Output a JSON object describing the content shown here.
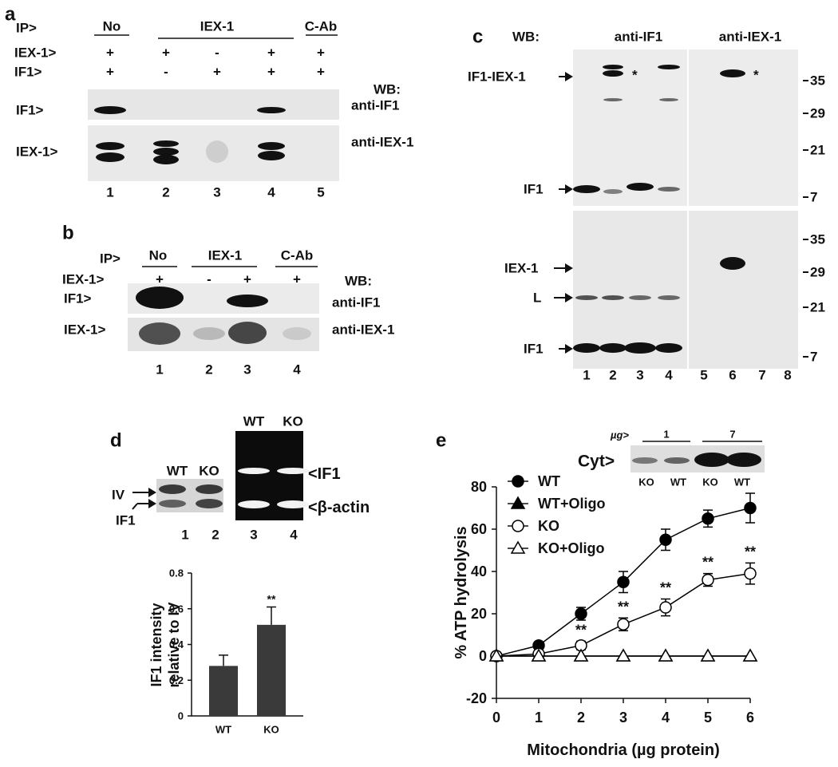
{
  "panels": {
    "a": {
      "letter": "a",
      "ip_label": "IP>",
      "groups": [
        "No",
        "IEX-1",
        "C-Ab"
      ],
      "rows": [
        {
          "label": "IEX-1>",
          "signs": [
            "+",
            "+",
            "-",
            "+",
            "+"
          ]
        },
        {
          "label": "IF1>",
          "signs": [
            "+",
            "-",
            "+",
            "+",
            "+"
          ]
        }
      ],
      "wb": "WB:",
      "blots": [
        {
          "label": "IF1>",
          "antibody": "anti-IF1"
        },
        {
          "label": "IEX-1>",
          "antibody": "anti-IEX-1"
        }
      ],
      "lanes": [
        1,
        2,
        3,
        4,
        5
      ]
    },
    "b": {
      "letter": "b",
      "ip_label": "IP>",
      "groups": [
        "No",
        "IEX-1",
        "C-Ab"
      ],
      "rows": [
        {
          "label": "IEX-1>",
          "signs": [
            "+",
            "-",
            "+",
            "+"
          ]
        }
      ],
      "wb": "WB:",
      "blots": [
        {
          "label": "IF1>",
          "antibody": "anti-IF1"
        },
        {
          "label": "IEX-1>",
          "antibody": "anti-IEX-1"
        }
      ],
      "lanes": [
        1,
        2,
        3,
        4
      ]
    },
    "c": {
      "letter": "c",
      "wb": "WB:",
      "antibodies": [
        "anti-IF1",
        "anti-IEX-1"
      ],
      "top_labels": [
        "IF1-IEX-1",
        "IF1"
      ],
      "bottom_labels": [
        "IEX-1",
        "L",
        "IF1"
      ],
      "asterisks": [
        "*",
        "*"
      ],
      "markers_top": [
        35,
        29,
        21,
        7
      ],
      "markers_bottom": [
        35,
        29,
        21,
        7
      ],
      "lanes": [
        1,
        2,
        3,
        4,
        5,
        6,
        7,
        8
      ]
    },
    "d": {
      "letter": "d",
      "blot_lanes": [
        "WT",
        "KO"
      ],
      "blot_labels": [
        "IV",
        "IF1"
      ],
      "gel_lanes": [
        "WT",
        "KO"
      ],
      "gel_labels": [
        "<IF1",
        "<β-actin"
      ],
      "lanes": [
        1,
        2,
        3,
        4
      ]
    },
    "e": {
      "letter": "e",
      "inset": {
        "amount_label": "µg>",
        "amounts": [
          1,
          7
        ],
        "label": "Cyt>",
        "lanes": [
          "KO",
          "WT",
          "KO",
          "WT"
        ]
      }
    }
  },
  "chart_data": [
    {
      "type": "bar",
      "categories": [
        "WT",
        "KO"
      ],
      "values": [
        0.28,
        0.51
      ],
      "errors": [
        0.06,
        0.1
      ],
      "significance": [
        null,
        "**"
      ],
      "ylabel": [
        "IF1 intensity",
        "relative to IV"
      ],
      "ylim": [
        0,
        0.8
      ],
      "yticks": [
        0,
        0.2,
        0.4,
        0.6,
        0.8
      ],
      "color": "#3a3a3a"
    },
    {
      "type": "line",
      "x": [
        0,
        1,
        2,
        3,
        4,
        5,
        6
      ],
      "series": [
        {
          "name": "WT",
          "marker": "circle",
          "filled": true,
          "values": [
            0,
            5,
            20,
            35,
            55,
            65,
            70
          ],
          "errors": [
            0,
            1,
            3,
            5,
            5,
            4,
            7
          ]
        },
        {
          "name": "WT+Oligo",
          "marker": "triangle",
          "filled": true,
          "values": [
            0,
            0,
            0,
            0,
            0,
            0,
            0
          ]
        },
        {
          "name": "KO",
          "marker": "circle",
          "filled": false,
          "values": [
            0,
            1,
            5,
            15,
            23,
            36,
            39
          ],
          "errors": [
            0,
            1,
            2,
            3,
            4,
            3,
            5
          ]
        },
        {
          "name": "KO+Oligo",
          "marker": "triangle",
          "filled": false,
          "values": [
            0,
            0,
            0,
            0,
            0,
            0,
            0
          ]
        }
      ],
      "significance": [
        null,
        null,
        "**",
        "**",
        "**",
        "**",
        "**"
      ],
      "xlabel": "Mitochondria (µg protein)",
      "ylabel": "% ATP hydrolysis",
      "xlim": [
        0,
        6
      ],
      "ylim": [
        -20,
        80
      ],
      "xticks": [
        0,
        1,
        2,
        3,
        4,
        5,
        6
      ],
      "yticks": [
        -20,
        0,
        20,
        40,
        60,
        80
      ],
      "color": "#000000"
    }
  ]
}
